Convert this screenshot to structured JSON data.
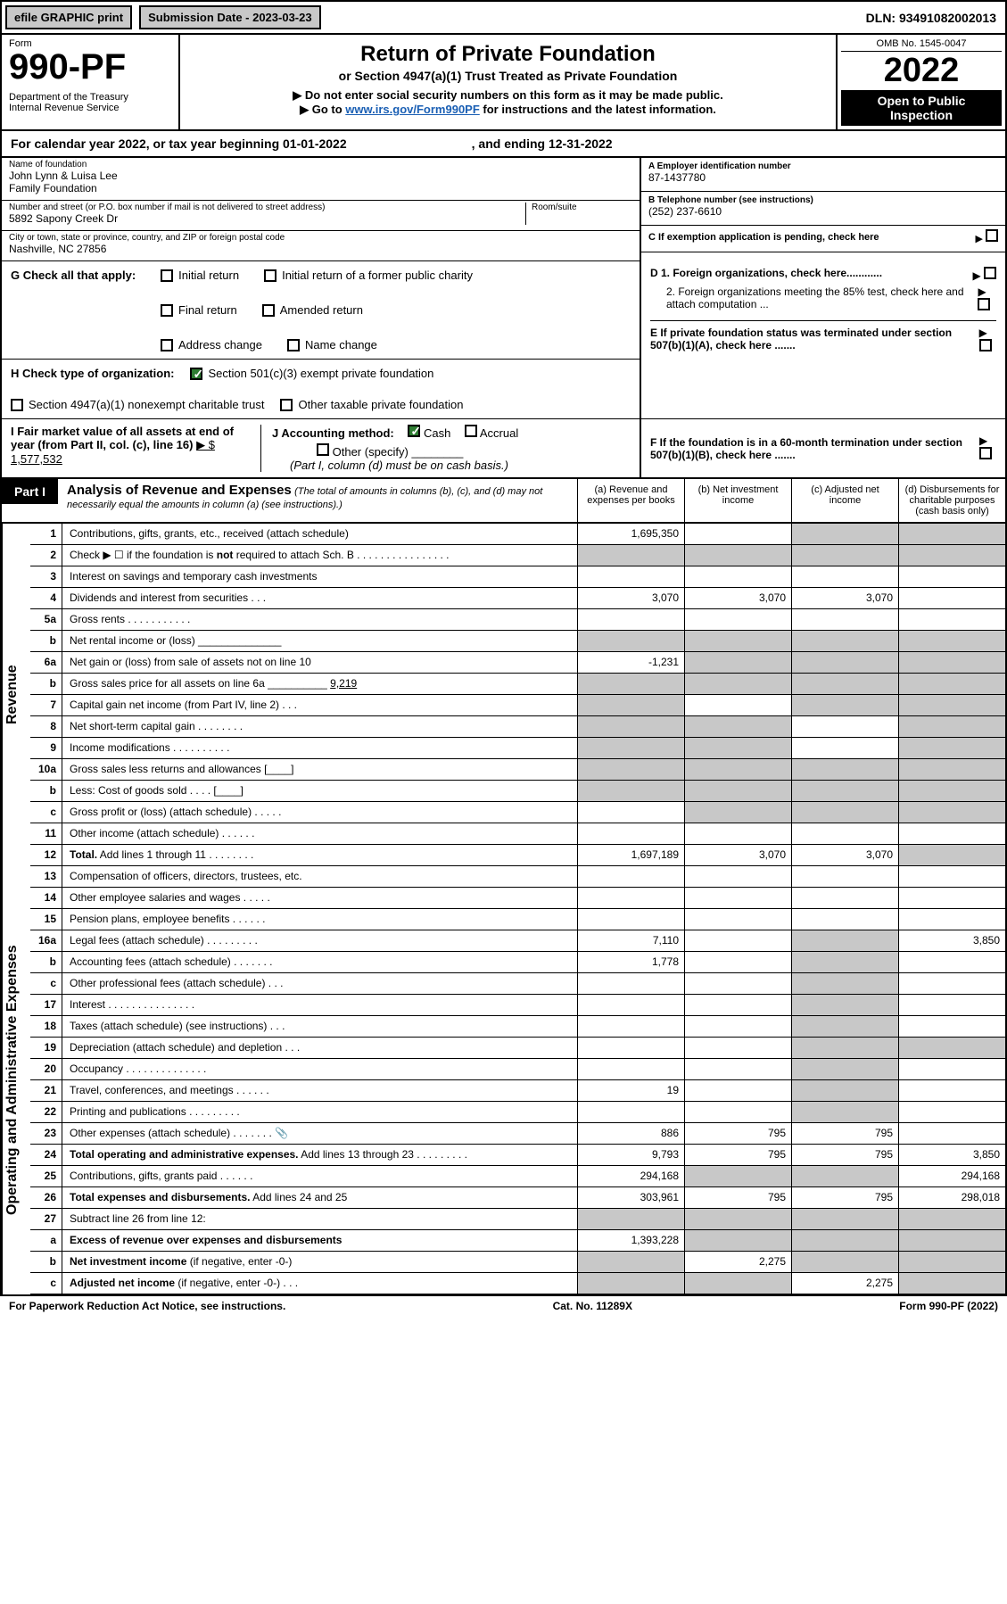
{
  "colors": {
    "black": "#000000",
    "white": "#ffffff",
    "grey_btn": "#c8c8c8",
    "link": "#1a5fb4",
    "check_green": "#2e7d32",
    "shade": "#c8c8c8"
  },
  "topbar": {
    "efile": "efile GRAPHIC print",
    "submission": "Submission Date - 2023-03-23",
    "dln": "DLN: 93491082002013"
  },
  "header": {
    "form_label": "Form",
    "form_number": "990-PF",
    "dept": "Department of the Treasury\nInternal Revenue Service",
    "title": "Return of Private Foundation",
    "subtitle": "or Section 4947(a)(1) Trust Treated as Private Foundation",
    "note1": "▶ Do not enter social security numbers on this form as it may be made public.",
    "note2_pre": "▶ Go to ",
    "note2_link": "www.irs.gov/Form990PF",
    "note2_post": " for instructions and the latest information.",
    "omb": "OMB No. 1545-0047",
    "year": "2022",
    "open": "Open to Public Inspection"
  },
  "calendar": {
    "left": "For calendar year 2022, or tax year beginning 01-01-2022",
    "right": ", and ending 12-31-2022"
  },
  "info": {
    "name_lbl": "Name of foundation",
    "name_val": "John Lynn & Luisa Lee\nFamily Foundation",
    "addr_lbl": "Number and street (or P.O. box number if mail is not delivered to street address)",
    "addr_val": "5892 Sapony Creek Dr",
    "room_lbl": "Room/suite",
    "city_lbl": "City or town, state or province, country, and ZIP or foreign postal code",
    "city_val": "Nashville, NC  27856",
    "ein_lbl": "A Employer identification number",
    "ein_val": "87-1437780",
    "phone_lbl": "B Telephone number (see instructions)",
    "phone_val": "(252) 237-6610",
    "pending": "C If exemption application is pending, check here"
  },
  "g": {
    "label": "G Check all that apply:",
    "initial": "Initial return",
    "initial_former": "Initial return of a former public charity",
    "final": "Final return",
    "amended": "Amended return",
    "address": "Address change",
    "name_change": "Name change"
  },
  "h": {
    "label": "H Check type of organization:",
    "s501": "Section 501(c)(3) exempt private foundation",
    "s4947": "Section 4947(a)(1) nonexempt charitable trust",
    "other_tax": "Other taxable private foundation"
  },
  "i": {
    "label": "I Fair market value of all assets at end of year (from Part II, col. (c), line 16)",
    "value": "▶ $  1,577,532"
  },
  "j": {
    "label": "J Accounting method:",
    "cash": "Cash",
    "accrual": "Accrual",
    "other": "Other (specify)",
    "note": "(Part I, column (d) must be on cash basis.)"
  },
  "d": {
    "d1": "D 1. Foreign organizations, check here............",
    "d2": "2. Foreign organizations meeting the 85% test, check here and attach computation ...",
    "e": "E  If private foundation status was terminated under section 507(b)(1)(A), check here .......",
    "f": "F  If the foundation is in a 60-month termination under section 507(b)(1)(B), check here ......."
  },
  "part1": {
    "tab": "Part I",
    "title": "Analysis of Revenue and Expenses",
    "title_note": " (The total of amounts in columns (b), (c), and (d) may not necessarily equal the amounts in column (a) (see instructions).)",
    "col_a": "(a)   Revenue and expenses per books",
    "col_b": "(b)   Net investment income",
    "col_c": "(c)   Adjusted net income",
    "col_d": "(d)  Disbursements for charitable purposes (cash basis only)"
  },
  "side": {
    "rev": "Revenue",
    "exp": "Operating and Administrative Expenses"
  },
  "rows": [
    {
      "n": "1",
      "d": "Contributions, gifts, grants, etc., received (attach schedule)",
      "a": "1,695,350",
      "b": "",
      "c": "",
      "ds": "s",
      "cs": "s",
      "dd": "s"
    },
    {
      "n": "2",
      "d": "Check ▶ ☐ if the foundation is <b>not</b> required to attach Sch. B     .   .   .   .   .   .   .   .   .   .   .   .   .   .   .   .",
      "a": "",
      "b": "",
      "c": "",
      "shade_all": true
    },
    {
      "n": "3",
      "d": "Interest on savings and temporary cash investments",
      "a": "",
      "b": "",
      "c": "",
      "dd": ""
    },
    {
      "n": "4",
      "d": "Dividends and interest from securities     .    .    .",
      "a": "3,070",
      "b": "3,070",
      "c": "3,070",
      "dd": ""
    },
    {
      "n": "5a",
      "d": "Gross rents     .    .    .    .    .    .    .    .    .    .    .",
      "a": "",
      "b": "",
      "c": "",
      "dd": ""
    },
    {
      "n": "b",
      "d": "Net rental income or (loss) ______________",
      "a": "",
      "b": "",
      "c": "",
      "shade_all": true
    },
    {
      "n": "6a",
      "d": "Net gain or (loss) from sale of assets not on line 10",
      "a": "-1,231",
      "b": "",
      "c": "",
      "bs": "s",
      "cs": "s",
      "dd": "s"
    },
    {
      "n": "b",
      "d": "Gross sales price for all assets on line 6a __________ <u>9,219</u>",
      "a": "",
      "b": "",
      "c": "",
      "shade_all": true
    },
    {
      "n": "7",
      "d": "Capital gain net income (from Part IV, line 2)    .   .   .",
      "a": "",
      "b": "",
      "c": "",
      "as": "s",
      "cs": "s",
      "dd": "s"
    },
    {
      "n": "8",
      "d": "Net short-term capital gain  .   .   .   .   .   .   .   .",
      "a": "",
      "b": "",
      "c": "",
      "as": "s",
      "bs": "s",
      "dd": "s"
    },
    {
      "n": "9",
      "d": "Income modifications  .   .   .   .   .   .   .   .   .   .",
      "a": "",
      "b": "",
      "c": "",
      "as": "s",
      "bs": "s",
      "dd": "s"
    },
    {
      "n": "10a",
      "d": "Gross sales less returns and allowances  [____]",
      "a": "",
      "b": "",
      "c": "",
      "shade_all": true
    },
    {
      "n": "b",
      "d": "Less: Cost of goods sold     .    .    .    .    [____]",
      "a": "",
      "b": "",
      "c": "",
      "shade_all": true
    },
    {
      "n": "c",
      "d": "Gross profit or (loss) (attach schedule)    .   .   .   .   .",
      "a": "",
      "b": "",
      "c": "",
      "bs": "s",
      "cs": "s",
      "dd": "s"
    },
    {
      "n": "11",
      "d": "Other income (attach schedule)    .   .   .   .   .   .",
      "a": "",
      "b": "",
      "c": "",
      "dd": ""
    },
    {
      "n": "12",
      "d": "<b>Total.</b> Add lines 1 through 11    .   .   .   .   .   .   .   .",
      "a": "1,697,189",
      "b": "3,070",
      "c": "3,070",
      "dd": "s"
    },
    {
      "n": "13",
      "d": "Compensation of officers, directors, trustees, etc.",
      "a": "",
      "b": "",
      "c": "",
      "dd": ""
    },
    {
      "n": "14",
      "d": "Other employee salaries and wages    .   .   .   .   .",
      "a": "",
      "b": "",
      "c": "",
      "dd": ""
    },
    {
      "n": "15",
      "d": "Pension plans, employee benefits  .   .   .   .   .   .",
      "a": "",
      "b": "",
      "c": "",
      "dd": ""
    },
    {
      "n": "16a",
      "d": "Legal fees (attach schedule)  .   .   .   .   .   .   .   .   .",
      "a": "7,110",
      "b": "",
      "c": "",
      "dd": "3,850",
      "cs": "s"
    },
    {
      "n": "b",
      "d": "Accounting fees (attach schedule)  .   .   .   .   .   .   .",
      "a": "1,778",
      "b": "",
      "c": "",
      "dd": "",
      "cs": "s"
    },
    {
      "n": "c",
      "d": "Other professional fees (attach schedule)    .   .   .",
      "a": "",
      "b": "",
      "c": "",
      "dd": "",
      "cs": "s"
    },
    {
      "n": "17",
      "d": "Interest  .   .   .   .   .   .   .   .   .   .   .   .   .   .   .",
      "a": "",
      "b": "",
      "c": "",
      "dd": "",
      "cs": "s"
    },
    {
      "n": "18",
      "d": "Taxes (attach schedule) (see instructions)     .   .   .",
      "a": "",
      "b": "",
      "c": "",
      "dd": "",
      "cs": "s"
    },
    {
      "n": "19",
      "d": "Depreciation (attach schedule) and depletion    .   .   .",
      "a": "",
      "b": "",
      "c": "",
      "dd": "s",
      "cs": "s"
    },
    {
      "n": "20",
      "d": "Occupancy  .   .   .   .   .   .   .   .   .   .   .   .   .   .",
      "a": "",
      "b": "",
      "c": "",
      "dd": "",
      "cs": "s"
    },
    {
      "n": "21",
      "d": "Travel, conferences, and meetings  .   .   .   .   .   .",
      "a": "19",
      "b": "",
      "c": "",
      "dd": "",
      "cs": "s"
    },
    {
      "n": "22",
      "d": "Printing and publications  .   .   .   .   .   .   .   .   .",
      "a": "",
      "b": "",
      "c": "",
      "dd": "",
      "cs": "s"
    },
    {
      "n": "23",
      "d": "Other expenses (attach schedule)  .   .   .   .   .   .   .    📎",
      "a": "886",
      "b": "795",
      "c": "795",
      "dd": "",
      "cs": ""
    },
    {
      "n": "24",
      "d": "<b>Total operating and administrative expenses.</b> Add lines 13 through 23   .   .   .   .   .   .   .   .   .",
      "a": "9,793",
      "b": "795",
      "c": "795",
      "dd": "3,850"
    },
    {
      "n": "25",
      "d": "Contributions, gifts, grants paid     .   .   .   .   .   .",
      "a": "294,168",
      "b": "",
      "c": "",
      "dd": "294,168",
      "bs": "s",
      "cs": "s"
    },
    {
      "n": "26",
      "d": "<b>Total expenses and disbursements.</b> Add lines 24 and 25",
      "a": "303,961",
      "b": "795",
      "c": "795",
      "dd": "298,018"
    },
    {
      "n": "27",
      "d": "Subtract line 26 from line 12:",
      "a": "",
      "b": "",
      "c": "",
      "shade_all": true
    },
    {
      "n": "a",
      "d": "<b>Excess of revenue over expenses and disbursements</b>",
      "a": "1,393,228",
      "b": "",
      "c": "",
      "bs": "s",
      "cs": "s",
      "dd": "s"
    },
    {
      "n": "b",
      "d": "<b>Net investment income</b> (if negative, enter -0-)",
      "a": "",
      "b": "2,275",
      "c": "",
      "as": "s",
      "cs": "s",
      "dd": "s"
    },
    {
      "n": "c",
      "d": "<b>Adjusted net income</b> (if negative, enter -0-)    .   .   .",
      "a": "",
      "b": "",
      "c": "2,275",
      "as": "s",
      "bs": "s",
      "dd": "s"
    }
  ],
  "footer": {
    "left": "For Paperwork Reduction Act Notice, see instructions.",
    "mid": "Cat. No. 11289X",
    "right": "Form 990-PF (2022)"
  }
}
